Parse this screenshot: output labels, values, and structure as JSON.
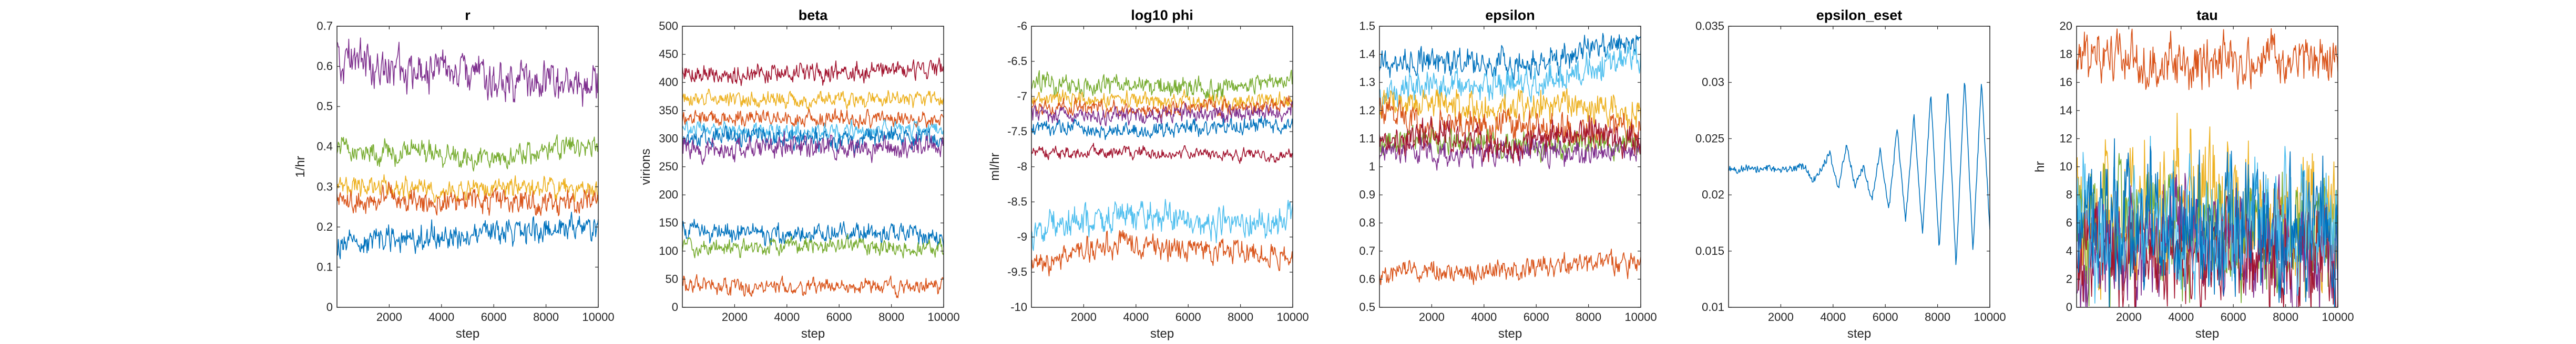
{
  "chart_data": [
    {
      "type": "line",
      "title": "r",
      "xlabel": "step",
      "ylabel": "1/hr",
      "xlim": [
        0,
        10000
      ],
      "ylim": [
        0,
        0.7
      ],
      "xticks": [
        2000,
        4000,
        6000,
        8000,
        10000
      ],
      "yticks": [
        0,
        0.1,
        0.2,
        0.3,
        0.4,
        0.5,
        0.6,
        0.7
      ],
      "grid": false,
      "series": [
        {
          "color": "#7E2F8E",
          "mean": 0.58,
          "noise": 0.035,
          "drift": -0.02,
          "values": [
            0.62,
            0.6,
            0.59,
            0.57,
            0.56,
            0.55
          ]
        },
        {
          "color": "#77AC30",
          "mean": 0.39,
          "noise": 0.02,
          "drift": 0.01,
          "values": [
            0.39,
            0.39,
            0.38,
            0.37,
            0.39,
            0.41
          ]
        },
        {
          "color": "#EDB120",
          "mean": 0.3,
          "noise": 0.018,
          "drift": 0,
          "values": [
            0.31,
            0.3,
            0.29,
            0.3,
            0.3,
            0.29
          ]
        },
        {
          "color": "#D95319",
          "mean": 0.27,
          "noise": 0.02,
          "drift": 0,
          "values": [
            0.27,
            0.27,
            0.26,
            0.27,
            0.26,
            0.26
          ]
        },
        {
          "color": "#0072BD",
          "mean": 0.18,
          "noise": 0.022,
          "drift": 0.02,
          "values": [
            0.16,
            0.17,
            0.17,
            0.19,
            0.19,
            0.2
          ]
        }
      ]
    },
    {
      "type": "line",
      "title": "beta",
      "xlabel": "step",
      "ylabel": "virions",
      "xlim": [
        0,
        10000
      ],
      "ylim": [
        0,
        500
      ],
      "xticks": [
        2000,
        4000,
        6000,
        8000,
        10000
      ],
      "yticks": [
        0,
        50,
        100,
        150,
        200,
        250,
        300,
        350,
        400,
        450,
        500
      ],
      "grid": false,
      "series": [
        {
          "color": "#A2142F",
          "mean": 418,
          "noise": 12,
          "drift": 0,
          "values": [
            420,
            415,
            418,
            417,
            420,
            425
          ]
        },
        {
          "color": "#EDB120",
          "mean": 370,
          "noise": 10,
          "drift": 0,
          "values": [
            370,
            372,
            368,
            370,
            370,
            372
          ]
        },
        {
          "color": "#D95319",
          "mean": 335,
          "noise": 10,
          "drift": 0,
          "values": [
            335,
            338,
            333,
            335,
            334,
            332
          ]
        },
        {
          "color": "#4DBEEE",
          "mean": 315,
          "noise": 10,
          "drift": 0,
          "values": [
            318,
            315,
            312,
            316,
            315,
            318
          ]
        },
        {
          "color": "#0072BD",
          "mean": 300,
          "noise": 12,
          "drift": 0,
          "values": [
            300,
            305,
            298,
            300,
            302,
            300
          ]
        },
        {
          "color": "#7E2F8E",
          "mean": 285,
          "noise": 14,
          "drift": 0,
          "values": [
            285,
            280,
            288,
            283,
            285,
            288
          ]
        },
        {
          "color": "#0072BD",
          "mean": 130,
          "noise": 12,
          "drift": 0,
          "values": [
            140,
            130,
            128,
            130,
            132,
            128
          ]
        },
        {
          "color": "#77AC30",
          "mean": 108,
          "noise": 10,
          "drift": 0,
          "values": [
            110,
            105,
            108,
            110,
            106,
            108
          ]
        },
        {
          "color": "#D95319",
          "mean": 38,
          "noise": 10,
          "drift": 0,
          "values": [
            40,
            35,
            38,
            37,
            36,
            38
          ]
        }
      ]
    },
    {
      "type": "line",
      "title": "log10 phi",
      "xlabel": "step",
      "ylabel": "ml/hr",
      "xlim": [
        0,
        10000
      ],
      "ylim": [
        -10,
        -6
      ],
      "xticks": [
        2000,
        4000,
        6000,
        8000,
        10000
      ],
      "yticks": [
        -10,
        -9.5,
        -9,
        -8.5,
        -8,
        -7.5,
        -7,
        -6.5,
        -6
      ],
      "grid": false,
      "series": [
        {
          "color": "#77AC30",
          "mean": -6.85,
          "noise": 0.1,
          "drift": 0,
          "values": [
            -6.8,
            -6.85,
            -6.85,
            -6.9,
            -6.85,
            -6.8
          ]
        },
        {
          "color": "#EDB120",
          "mean": -7.05,
          "noise": 0.08,
          "drift": 0,
          "values": [
            -7,
            -7.05,
            -7.05,
            -7.05,
            -7.1,
            -7.05
          ]
        },
        {
          "color": "#D95319",
          "mean": -7.15,
          "noise": 0.07,
          "drift": 0,
          "values": [
            -7.15,
            -7.15,
            -7.2,
            -7.15,
            -7.15,
            -7.1
          ]
        },
        {
          "color": "#7E2F8E",
          "mean": -7.25,
          "noise": 0.08,
          "drift": 0,
          "values": [
            -7.25,
            -7.25,
            -7.3,
            -7.25,
            -7.25,
            -7.2
          ]
        },
        {
          "color": "#0072BD",
          "mean": -7.45,
          "noise": 0.08,
          "drift": 0,
          "values": [
            -7.45,
            -7.45,
            -7.5,
            -7.45,
            -7.45,
            -7.4
          ]
        },
        {
          "color": "#A2142F",
          "mean": -7.8,
          "noise": 0.06,
          "drift": 0,
          "values": [
            -7.8,
            -7.8,
            -7.8,
            -7.8,
            -7.85,
            -7.85
          ]
        },
        {
          "color": "#4DBEEE",
          "mean": -8.8,
          "noise": 0.15,
          "drift": 0,
          "values": [
            -8.9,
            -8.75,
            -8.7,
            -8.75,
            -8.85,
            -8.75
          ]
        },
        {
          "color": "#D95319",
          "mean": -9.2,
          "noise": 0.12,
          "drift": 0,
          "values": [
            -9.4,
            -9.2,
            -9.1,
            -9.2,
            -9.2,
            -9.25
          ]
        }
      ]
    },
    {
      "type": "line",
      "title": "epsilon",
      "xlabel": "step",
      "ylabel": "",
      "xlim": [
        0,
        10000
      ],
      "ylim": [
        0.5,
        1.5
      ],
      "xticks": [
        2000,
        4000,
        6000,
        8000,
        10000
      ],
      "yticks": [
        0.5,
        0.6,
        0.7,
        0.8,
        0.9,
        1,
        1.1,
        1.2,
        1.3,
        1.4,
        1.5
      ],
      "grid": false,
      "series": [
        {
          "color": "#0072BD",
          "mean": 1.38,
          "noise": 0.035,
          "drift": 0.06,
          "values": [
            1.36,
            1.38,
            1.37,
            1.36,
            1.42,
            1.45
          ]
        },
        {
          "color": "#4DBEEE",
          "mean": 1.3,
          "noise": 0.04,
          "drift": 0.06,
          "values": [
            1.28,
            1.3,
            1.28,
            1.3,
            1.35,
            1.38
          ]
        },
        {
          "color": "#EDB120",
          "mean": 1.22,
          "noise": 0.04,
          "drift": 0,
          "values": [
            1.24,
            1.22,
            1.2,
            1.22,
            1.22,
            1.2
          ]
        },
        {
          "color": "#D95319",
          "mean": 1.15,
          "noise": 0.04,
          "drift": 0,
          "values": [
            1.18,
            1.15,
            1.15,
            1.14,
            1.12,
            1.15
          ]
        },
        {
          "color": "#77AC30",
          "mean": 1.08,
          "noise": 0.03,
          "drift": 0,
          "values": [
            1.08,
            1.1,
            1.08,
            1.07,
            1.08,
            1.08
          ]
        },
        {
          "color": "#7E2F8E",
          "mean": 1.05,
          "noise": 0.03,
          "drift": 0,
          "values": [
            1.06,
            1.05,
            1.05,
            1.05,
            1.05,
            1.06
          ]
        },
        {
          "color": "#A2142F",
          "mean": 1.1,
          "noise": 0.04,
          "drift": 0,
          "values": [
            1.1,
            1.12,
            1.08,
            1.1,
            1.12,
            1.1
          ]
        },
        {
          "color": "#D95319",
          "mean": 0.63,
          "noise": 0.025,
          "drift": 0.02,
          "values": [
            0.62,
            0.63,
            0.62,
            0.64,
            0.65,
            0.66
          ]
        }
      ]
    },
    {
      "type": "line",
      "title": "epsilon_eset",
      "xlabel": "step",
      "ylabel": "",
      "xlim": [
        0,
        10000
      ],
      "ylim": [
        0.01,
        0.035
      ],
      "xticks": [
        2000,
        4000,
        6000,
        8000,
        10000
      ],
      "yticks": [
        0.01,
        0.015,
        0.02,
        0.025,
        0.03,
        0.035
      ],
      "grid": false,
      "series": [
        {
          "color": "#0072BD",
          "values": [
            0.0225,
            0.0222,
            0.0224,
            0.0223,
            0.0222,
            0.0224,
            0.0221,
            0.0223,
            0.0224,
            0.0226,
            0.0213,
            0.0223,
            0.0237,
            0.0205,
            0.0245,
            0.0208,
            0.0225,
            0.0195,
            0.024,
            0.0185,
            0.026,
            0.0175,
            0.027,
            0.0165,
            0.029,
            0.015,
            0.0295,
            0.0135,
            0.0305,
            0.015,
            0.03,
            0.017
          ]
        }
      ]
    },
    {
      "type": "line",
      "title": "tau",
      "xlabel": "step",
      "ylabel": "hr",
      "xlim": [
        0,
        10000
      ],
      "ylim": [
        0,
        20
      ],
      "xticks": [
        2000,
        4000,
        6000,
        8000,
        10000
      ],
      "yticks": [
        0,
        2,
        4,
        6,
        8,
        10,
        12,
        14,
        16,
        18,
        20
      ],
      "grid": false,
      "series": [
        {
          "color": "#D95319",
          "mean": 17.5,
          "noise": 1.2,
          "drift": 0,
          "values": [
            17.5,
            17.8,
            17.2,
            17.5,
            17.5,
            17.8
          ]
        },
        {
          "color": "#EDB120",
          "mean": 7,
          "noise": 3.5,
          "drift": 0,
          "values": [
            7,
            6.5,
            7.5,
            7,
            6.8,
            7.2
          ]
        },
        {
          "color": "#77AC30",
          "mean": 5,
          "noise": 3,
          "drift": 0,
          "values": [
            5,
            5.2,
            4.8,
            5,
            5.1,
            4.9
          ]
        },
        {
          "color": "#7E2F8E",
          "mean": 4.5,
          "noise": 2.8,
          "drift": 0,
          "values": [
            4.5,
            4.3,
            4.7,
            4.5,
            4.4,
            4.6
          ]
        },
        {
          "color": "#A2142F",
          "mean": 3.5,
          "noise": 2.5,
          "drift": 0,
          "values": [
            3.5,
            3.4,
            3.6,
            3.5,
            3.3,
            3.6
          ]
        },
        {
          "color": "#4DBEEE",
          "mean": 6,
          "noise": 3,
          "drift": 0,
          "values": [
            6,
            6.2,
            5.8,
            6,
            6.1,
            5.9
          ]
        },
        {
          "color": "#0072BD",
          "mean": 5.5,
          "noise": 3.2,
          "drift": 0,
          "values": [
            5.5,
            5.6,
            5.4,
            5.5,
            5.6,
            5.5
          ]
        }
      ]
    }
  ]
}
